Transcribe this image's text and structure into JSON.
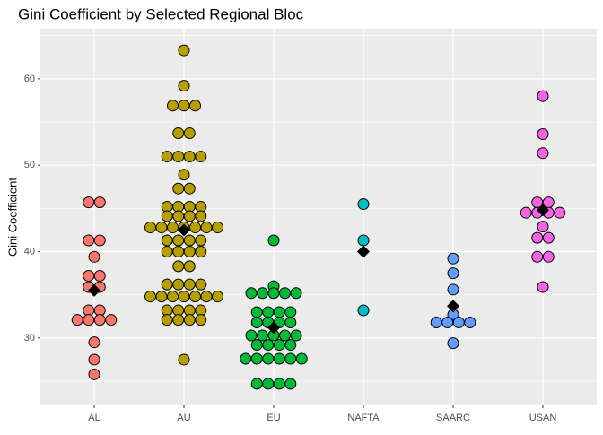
{
  "chart_data": {
    "type": "dotplot",
    "title": "Gini Coefficient by Selected Regional Bloc",
    "y_label": "Gini Coefficient",
    "categories": [
      "AL",
      "AU",
      "EU",
      "NAFTA",
      "SAARC",
      "USAN"
    ],
    "colors": [
      "#F8766D",
      "#B79F00",
      "#00BA38",
      "#00BFC4",
      "#619CFF",
      "#F564E3"
    ],
    "values": [
      [
        45.7,
        45.7,
        41.3,
        41.3,
        39.4,
        37.2,
        37.2,
        35.9,
        35.9,
        33.2,
        33.2,
        32.1,
        32.1,
        32.1,
        32.1,
        29.5,
        27.5,
        25.8
      ],
      [
        63.3,
        59.2,
        56.9,
        56.9,
        56.9,
        53.7,
        53.7,
        51.0,
        51.0,
        51.0,
        51.0,
        48.9,
        47.3,
        47.3,
        45.2,
        45.2,
        45.2,
        45.2,
        44.1,
        44.1,
        44.1,
        44.1,
        42.8,
        42.8,
        42.8,
        42.8,
        42.8,
        42.8,
        42.8,
        41.3,
        41.3,
        41.3,
        41.3,
        40.0,
        40.0,
        40.0,
        40.0,
        38.3,
        38.3,
        36.2,
        36.2,
        36.2,
        36.2,
        34.8,
        34.8,
        34.8,
        34.8,
        34.8,
        34.8,
        34.8,
        33.2,
        33.2,
        33.2,
        33.2,
        32.1,
        32.1,
        32.1,
        32.1,
        27.5
      ],
      [
        41.3,
        36.0,
        35.2,
        35.2,
        35.2,
        35.2,
        35.2,
        33.0,
        33.0,
        33.0,
        33.0,
        31.8,
        31.8,
        31.8,
        31.8,
        30.3,
        30.3,
        30.3,
        30.3,
        30.3,
        29.2,
        29.2,
        29.2,
        29.2,
        27.6,
        27.6,
        27.6,
        27.6,
        27.6,
        27.6,
        24.7,
        24.7,
        24.7,
        24.7
      ],
      [
        45.5,
        41.3,
        33.2
      ],
      [
        39.2,
        37.5,
        35.6,
        32.7,
        31.8,
        31.8,
        31.8,
        31.8,
        29.4
      ],
      [
        58.0,
        53.6,
        51.4,
        45.7,
        45.7,
        44.5,
        44.5,
        44.5,
        44.5,
        42.9,
        41.6,
        41.6,
        39.4,
        39.4,
        35.9
      ]
    ],
    "means": [
      35.5,
      42.5,
      31.2,
      40.0,
      33.7,
      44.8
    ],
    "ylim": [
      22.2,
      65.8
    ],
    "yticks": [
      30,
      40,
      50,
      60
    ],
    "yminorticks": [
      25,
      35,
      45,
      55,
      65
    ],
    "grid": true
  }
}
